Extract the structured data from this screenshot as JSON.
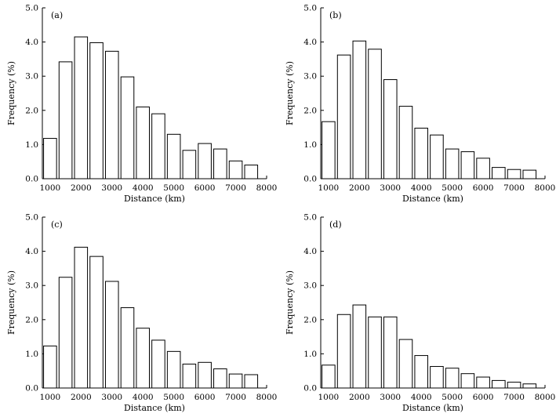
{
  "figure": {
    "layout": "2x2 grid of histograms"
  },
  "chart_data": [
    {
      "type": "bar",
      "panel_label": "(a)",
      "xlabel": "Distance (km)",
      "ylabel": "Frequency (%)",
      "x": [
        1000,
        1500,
        2000,
        2500,
        3000,
        3500,
        4000,
        4500,
        5000,
        5500,
        6000,
        6500,
        7000,
        7500
      ],
      "values": [
        1.18,
        3.42,
        4.15,
        3.98,
        3.73,
        2.98,
        2.1,
        1.9,
        1.3,
        0.83,
        1.03,
        0.87,
        0.52,
        0.4
      ],
      "xlim": [
        750,
        8000
      ],
      "ylim": [
        0,
        5.0
      ],
      "xticks": [
        1000,
        2000,
        3000,
        4000,
        5000,
        6000,
        7000,
        8000
      ],
      "yticks": [
        0,
        1,
        2,
        3,
        4,
        5
      ],
      "ytick_labels": [
        "0.0",
        "1.0",
        "2.0",
        "3.0",
        "4.0",
        "5.0"
      ],
      "grid": false
    },
    {
      "type": "bar",
      "panel_label": "(b)",
      "xlabel": "Distance (km)",
      "ylabel": "Frequency (%)",
      "x": [
        1000,
        1500,
        2000,
        2500,
        3000,
        3500,
        4000,
        4500,
        5000,
        5500,
        6000,
        6500,
        7000,
        7500
      ],
      "values": [
        1.67,
        3.62,
        4.03,
        3.79,
        2.9,
        2.12,
        1.48,
        1.28,
        0.87,
        0.79,
        0.6,
        0.33,
        0.27,
        0.25
      ],
      "xlim": [
        750,
        8000
      ],
      "ylim": [
        0,
        5.0
      ],
      "xticks": [
        1000,
        2000,
        3000,
        4000,
        5000,
        6000,
        7000,
        8000
      ],
      "yticks": [
        0,
        1,
        2,
        3,
        4,
        5
      ],
      "ytick_labels": [
        "0.0",
        "1.0",
        "2.0",
        "3.0",
        "4.0",
        "5.0"
      ],
      "grid": false
    },
    {
      "type": "bar",
      "panel_label": "(c)",
      "xlabel": "Distance (km)",
      "ylabel": "Frequency (%)",
      "x": [
        1000,
        1500,
        2000,
        2500,
        3000,
        3500,
        4000,
        4500,
        5000,
        5500,
        6000,
        6500,
        7000,
        7500
      ],
      "values": [
        1.23,
        3.24,
        4.12,
        3.85,
        3.12,
        2.35,
        1.75,
        1.4,
        1.07,
        0.7,
        0.75,
        0.56,
        0.41,
        0.39
      ],
      "xlim": [
        750,
        8000
      ],
      "ylim": [
        0,
        5.0
      ],
      "xticks": [
        1000,
        2000,
        3000,
        4000,
        5000,
        6000,
        7000,
        8000
      ],
      "yticks": [
        0,
        1,
        2,
        3,
        4,
        5
      ],
      "ytick_labels": [
        "0.0",
        "1.0",
        "2.0",
        "3.0",
        "4.0",
        "5.0"
      ],
      "grid": false
    },
    {
      "type": "bar",
      "panel_label": "(d)",
      "xlabel": "Distance (km)",
      "ylabel": "Frequency (%)",
      "x": [
        1000,
        1500,
        2000,
        2500,
        3000,
        3500,
        4000,
        4500,
        5000,
        5500,
        6000,
        6500,
        7000,
        7500
      ],
      "values": [
        0.67,
        2.15,
        2.43,
        2.08,
        2.08,
        1.42,
        0.95,
        0.63,
        0.58,
        0.42,
        0.32,
        0.22,
        0.17,
        0.12
      ],
      "xlim": [
        750,
        8000
      ],
      "ylim": [
        0,
        5.0
      ],
      "xticks": [
        1000,
        2000,
        3000,
        4000,
        5000,
        6000,
        7000,
        8000
      ],
      "yticks": [
        0,
        1,
        2,
        3,
        4,
        5
      ],
      "ytick_labels": [
        "0.0",
        "1.0",
        "2.0",
        "3.0",
        "4.0",
        "5.0"
      ],
      "grid": false
    }
  ]
}
